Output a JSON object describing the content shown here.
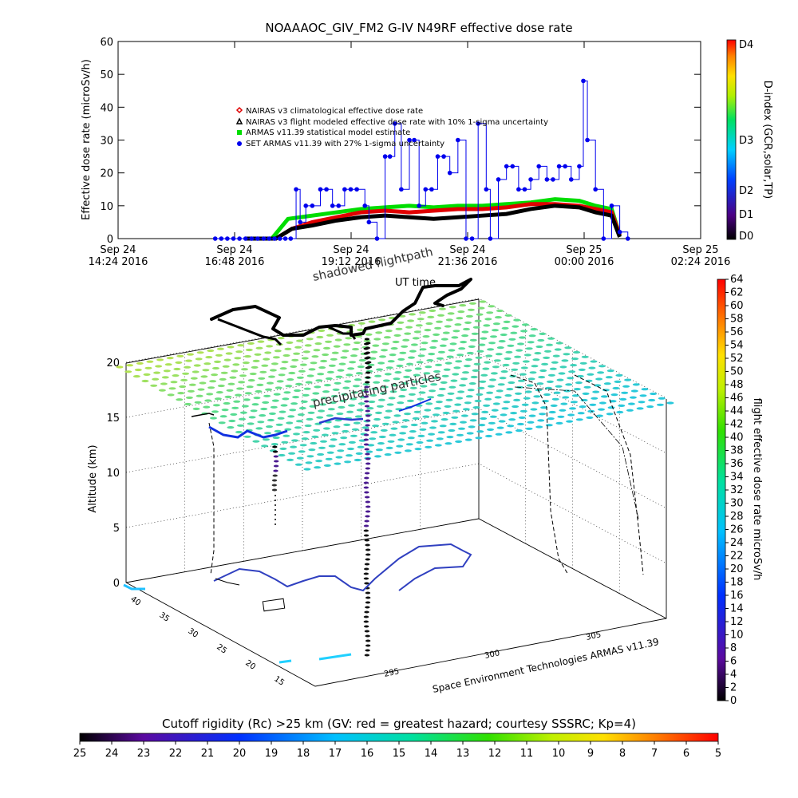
{
  "top_chart": {
    "title": "NOAAAOC_GIV_FM2 G-IV   N49RF  effective dose rate",
    "ylabel": "Effective dose rate (microSv/h)",
    "right_label": "D-index (GCR,solar,TP)",
    "legend": [
      {
        "text": "NAIRAS v3 climatological effective dose rate",
        "color": "#e00000",
        "marker": "diamond"
      },
      {
        "text": "NAIRAS v3 flight modeled effective dose rate with 10% 1-sigma uncertainty",
        "color": "#000000",
        "marker": "triangle"
      },
      {
        "text": "ARMAS v11.39 statistical model estimate",
        "color": "#00dd00",
        "marker": "square"
      },
      {
        "text": "SET ARMAS v11.39 with 27% 1-sigma uncertainty",
        "color": "#0000ee",
        "marker": "circle"
      }
    ],
    "dindex_ticks": [
      "D4",
      "D3",
      "D2",
      "D1",
      "D0"
    ]
  },
  "bottom_plot": {
    "shadow_label": "shadowed flightpath",
    "ut_label": "UT time",
    "precip_label": "precipitating particles",
    "ylabel": "Altitude (km)",
    "z_ticks": [
      "0",
      "5",
      "10",
      "15",
      "20"
    ],
    "lat_ticks": [
      "40",
      "35",
      "30",
      "25",
      "20",
      "15"
    ],
    "lon_ticks": [
      "295",
      "300",
      "305"
    ],
    "credit": "Space Environment Technologies ARMAS v11.39",
    "right_label": "flight effective dose rate microSv/h",
    "colorbar_ticks": [
      "64",
      "62",
      "60",
      "58",
      "56",
      "54",
      "52",
      "50",
      "48",
      "46",
      "44",
      "42",
      "40",
      "38",
      "36",
      "34",
      "32",
      "30",
      "28",
      "26",
      "24",
      "22",
      "20",
      "18",
      "16",
      "14",
      "12",
      "10",
      "8",
      "6",
      "4",
      "2",
      "0"
    ]
  },
  "bottom_bar": {
    "title": "Cutoff rigidity (Rc) >25 km (GV: red = greatest hazard; courtesy SSSRC; Kp=4)",
    "ticks": [
      "25",
      "24",
      "23",
      "22",
      "21",
      "20",
      "19",
      "18",
      "17",
      "16",
      "15",
      "14",
      "13",
      "12",
      "11",
      "10",
      "9",
      "8",
      "7",
      "6",
      "5"
    ]
  },
  "chart_data": [
    {
      "type": "line",
      "title": "NOAAAOC_GIV_FM2 G-IV   N49RF  effective dose rate",
      "ylabel": "Effective dose rate (microSv/h)",
      "ylim": [
        0,
        60
      ],
      "yticks": [
        0,
        10,
        20,
        30,
        40,
        50,
        60
      ],
      "xlim": [
        0,
        720
      ],
      "x_unit": "minutes after Sep 24 14:24 UT 2016",
      "xticks": [
        {
          "x": 0,
          "line1": "Sep 24",
          "line2": "14:24 2016"
        },
        {
          "x": 144,
          "line1": "Sep 24",
          "line2": "16:48 2016"
        },
        {
          "x": 288,
          "line1": "Sep 24",
          "line2": "19:12 2016"
        },
        {
          "x": 432,
          "line1": "Sep 24",
          "line2": "21:36 2016"
        },
        {
          "x": 576,
          "line1": "Sep 25",
          "line2": "00:00 2016"
        },
        {
          "x": 720,
          "line1": "Sep 25",
          "line2": "02:24 2016"
        }
      ],
      "series": [
        {
          "name": "ARMAS v11.39 statistical model estimate",
          "color": "#00dd00",
          "x": [
            157,
            190,
            210,
            240,
            270,
            300,
            330,
            360,
            390,
            420,
            450,
            480,
            510,
            540,
            570,
            590,
            610,
            620
          ],
          "y": [
            0,
            0,
            6,
            7,
            8,
            9,
            9.5,
            10,
            9.5,
            10,
            10,
            10.5,
            11,
            12,
            11.5,
            10,
            9,
            1
          ]
        },
        {
          "name": "NAIRAS v3 climatological effective dose rate",
          "color": "#e00000",
          "x": [
            157,
            195,
            215,
            240,
            270,
            300,
            330,
            360,
            390,
            420,
            450,
            480,
            510,
            540,
            570,
            590,
            610,
            620
          ],
          "y": [
            0,
            0,
            3,
            5,
            6.5,
            8,
            8.5,
            8,
            8.5,
            9,
            9,
            9.5,
            10.5,
            10.5,
            10,
            9,
            8,
            1
          ]
        },
        {
          "name": "NAIRAS v3 flight modeled effective dose rate with 10% 1-sigma uncertainty",
          "color": "#000000",
          "x": [
            157,
            195,
            215,
            240,
            270,
            300,
            330,
            360,
            390,
            420,
            450,
            480,
            510,
            540,
            570,
            590,
            610,
            620
          ],
          "y": [
            0,
            0,
            3,
            4,
            5.5,
            6.5,
            7,
            6.5,
            6,
            6.5,
            7,
            7.5,
            9,
            10,
            9.5,
            8,
            7,
            0.5
          ]
        },
        {
          "name": "SET ARMAS v11.39 with 27% 1-sigma uncertainty",
          "color": "#0000ee",
          "x": [
            120,
            180,
            200,
            220,
            225,
            232,
            240,
            250,
            265,
            280,
            295,
            305,
            310,
            320,
            330,
            342,
            350,
            360,
            372,
            380,
            395,
            410,
            420,
            430,
            445,
            455,
            460,
            470,
            480,
            495,
            510,
            520,
            530,
            545,
            560,
            570,
            575,
            580,
            590,
            600,
            610,
            620,
            630
          ],
          "y": [
            0,
            0,
            0,
            15,
            5,
            10,
            10,
            15,
            10,
            15,
            15,
            10,
            5,
            0,
            25,
            35,
            15,
            30,
            10,
            15,
            25,
            20,
            30,
            0,
            35,
            15,
            0,
            18,
            22,
            15,
            18,
            22,
            18,
            22,
            18,
            22,
            48,
            30,
            15,
            0,
            10,
            2,
            0
          ]
        }
      ]
    },
    {
      "type": "heatmap",
      "title": "Cutoff rigidity (Rc) >25 km (GV: red = greatest hazard; courtesy SSSRC; Kp=4)",
      "colorbar_range": [
        25,
        5
      ],
      "colorbar_label": "flight effective dose rate microSv/h",
      "colorbar_dose_range": [
        0,
        64
      ],
      "z_axis": {
        "label": "Altitude (km)",
        "range": [
          0,
          20
        ]
      },
      "lat_range": [
        15,
        40
      ],
      "lon_range": [
        295,
        305
      ]
    }
  ]
}
